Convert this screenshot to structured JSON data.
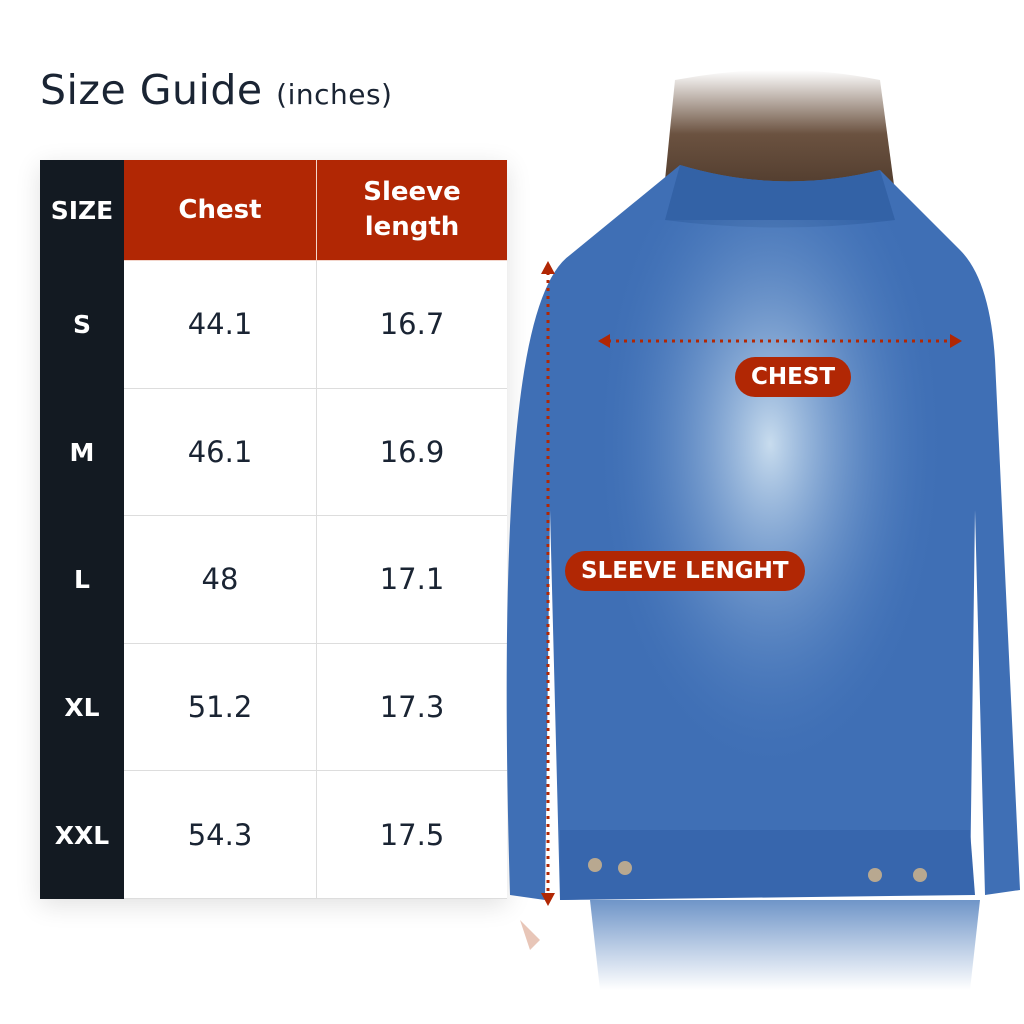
{
  "title": {
    "main": "Size Guide",
    "unit": "(inches)"
  },
  "table": {
    "headers": [
      "SIZE",
      "Chest",
      "Sleeve length"
    ],
    "rows": [
      {
        "size": "S",
        "chest": "44.1",
        "sleeve": "16.7"
      },
      {
        "size": "M",
        "chest": "46.1",
        "sleeve": "16.9"
      },
      {
        "size": "L",
        "chest": "48",
        "sleeve": "17.1"
      },
      {
        "size": "XL",
        "chest": "51.2",
        "sleeve": "17.3"
      },
      {
        "size": "XXL",
        "chest": "54.3",
        "sleeve": "17.5"
      }
    ]
  },
  "photo": {
    "chest_label": "CHEST",
    "sleeve_label": "SLEEVE LENGHT"
  },
  "colors": {
    "accent": "#b12704",
    "dark": "#131a22",
    "denim": "#3d6fb8"
  }
}
